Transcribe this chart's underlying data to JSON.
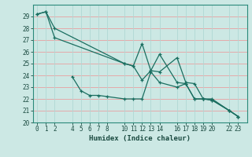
{
  "title": "",
  "xlabel": "Humidex (Indice chaleur)",
  "bg_color": "#cce8e4",
  "grid_color_h": "#e8a0a0",
  "grid_color_v": "#b0d8d4",
  "line_color": "#1a6e60",
  "x_ticks": [
    0,
    1,
    2,
    4,
    5,
    6,
    7,
    8,
    10,
    11,
    12,
    13,
    14,
    16,
    17,
    18,
    19,
    20,
    22,
    23
  ],
  "series1_x": [
    0,
    1,
    2,
    10,
    11,
    12,
    13,
    14,
    16,
    17,
    18,
    19,
    20,
    22,
    23
  ],
  "series1_y": [
    29.2,
    29.4,
    28.0,
    25.0,
    24.8,
    23.6,
    24.4,
    24.3,
    25.5,
    23.4,
    23.3,
    22.0,
    22.0,
    21.0,
    20.5
  ],
  "series2_x": [
    0,
    1,
    2,
    10,
    11,
    12,
    13,
    14,
    16,
    17,
    18,
    19,
    20,
    22,
    23
  ],
  "series2_y": [
    29.2,
    29.4,
    27.2,
    25.0,
    24.8,
    26.7,
    24.4,
    25.8,
    23.4,
    23.3,
    22.0,
    22.0,
    21.9,
    21.0,
    20.5
  ],
  "series3_x": [
    4,
    5,
    6,
    7,
    8,
    10,
    11,
    12,
    13,
    14,
    16,
    17,
    18,
    19,
    20,
    22,
    23
  ],
  "series3_y": [
    23.9,
    22.7,
    22.3,
    22.3,
    22.2,
    22.0,
    22.0,
    22.0,
    24.3,
    23.4,
    23.0,
    23.3,
    22.0,
    22.0,
    21.9,
    21.0,
    20.5
  ],
  "ylim": [
    20,
    30
  ],
  "xlim": [
    -0.5,
    24.0
  ],
  "yticks": [
    20,
    21,
    22,
    23,
    24,
    25,
    26,
    27,
    28,
    29
  ]
}
